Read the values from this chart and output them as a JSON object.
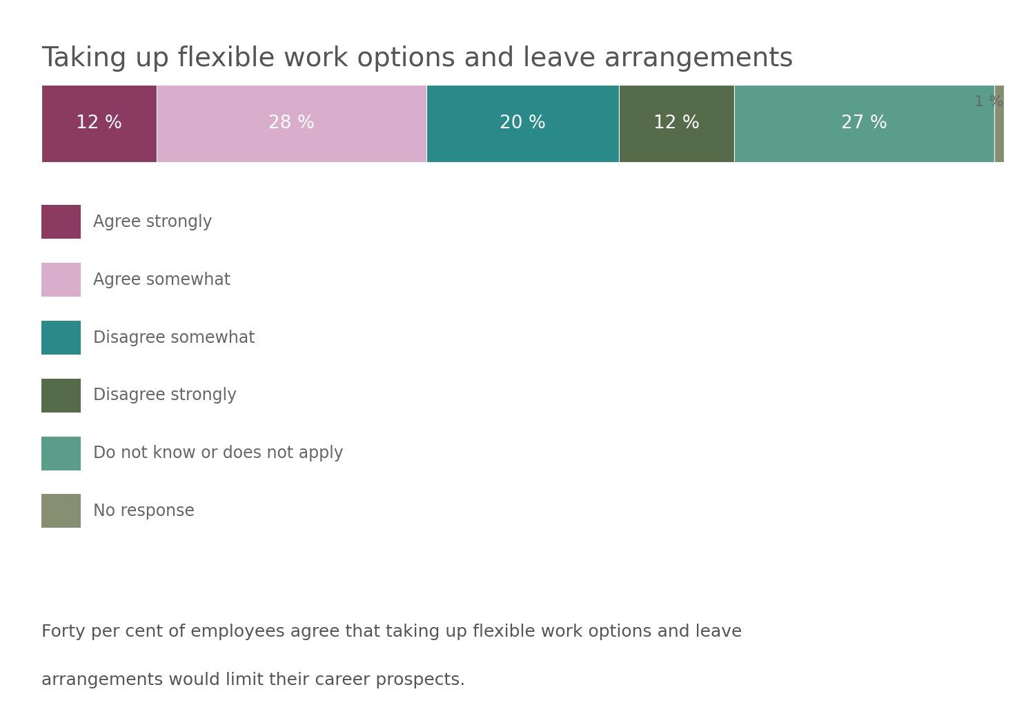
{
  "title": "Taking up flexible work options and leave arrangements",
  "note": "1 %",
  "segments": [
    {
      "label": "Agree strongly",
      "value": 12,
      "color": "#8B3A62"
    },
    {
      "label": "Agree somewhat",
      "value": 28,
      "color": "#D9AECC"
    },
    {
      "label": "Disagree somewhat",
      "value": 20,
      "color": "#2A8A8A"
    },
    {
      "label": "Disagree strongly",
      "value": 12,
      "color": "#556B4A"
    },
    {
      "label": "Do not know or does not apply",
      "value": 27,
      "color": "#5A9E8A"
    },
    {
      "label": "No response",
      "value": 1,
      "color": "#888E72"
    }
  ],
  "bar_text_color": "#FFFFFF",
  "title_color": "#555555",
  "legend_text_color": "#666666",
  "note_color": "#666666",
  "footnote_line1": "Forty per cent of employees agree that taking up flexible work options and leave",
  "footnote_line2": "arrangements would limit their career prospects.",
  "footnote_color": "#555555",
  "title_fontsize": 28,
  "bar_label_fontsize": 19,
  "legend_fontsize": 17,
  "note_fontsize": 16,
  "footnote_fontsize": 18,
  "bg_color": "#FFFFFF"
}
